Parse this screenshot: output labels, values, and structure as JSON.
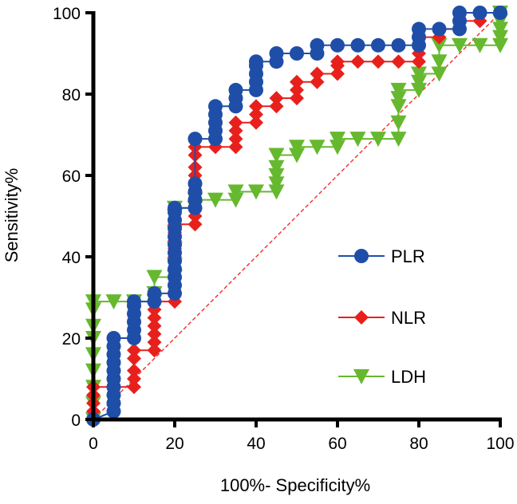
{
  "chart_data": {
    "type": "line",
    "title": "",
    "xlabel": "100%- Specificity%",
    "ylabel": "Sensitivity%",
    "xlim": [
      0,
      100
    ],
    "ylim": [
      0,
      100
    ],
    "xticks": [
      "0",
      "20",
      "40",
      "60",
      "80",
      "100"
    ],
    "yticks": [
      "0",
      "20",
      "40",
      "60",
      "80",
      "100"
    ],
    "x_tick_values": [
      0,
      20,
      40,
      60,
      80,
      100
    ],
    "y_tick_values": [
      0,
      20,
      40,
      60,
      80,
      100
    ],
    "grid": false,
    "legend_position": "right",
    "reference_line": {
      "style": "dashed",
      "color": "#e8322b",
      "from": [
        0,
        0
      ],
      "to": [
        100,
        100
      ]
    },
    "series": [
      {
        "name": "PLR",
        "color": "#1f4ea8",
        "marker": "circle",
        "points": [
          [
            0,
            0
          ],
          [
            5,
            2
          ],
          [
            5,
            4
          ],
          [
            5,
            6
          ],
          [
            5,
            8
          ],
          [
            5,
            10
          ],
          [
            5,
            12
          ],
          [
            5,
            14
          ],
          [
            5,
            16
          ],
          [
            5,
            18
          ],
          [
            5,
            20
          ],
          [
            10,
            20
          ],
          [
            10,
            22
          ],
          [
            10,
            24
          ],
          [
            10,
            26
          ],
          [
            10,
            28
          ],
          [
            10,
            29
          ],
          [
            15,
            29
          ],
          [
            15,
            31
          ],
          [
            20,
            31
          ],
          [
            20,
            33
          ],
          [
            20,
            35
          ],
          [
            20,
            37
          ],
          [
            20,
            39
          ],
          [
            20,
            41
          ],
          [
            20,
            43
          ],
          [
            20,
            45
          ],
          [
            20,
            47
          ],
          [
            20,
            49
          ],
          [
            20,
            51
          ],
          [
            20,
            52
          ],
          [
            25,
            52
          ],
          [
            25,
            54
          ],
          [
            25,
            56
          ],
          [
            25,
            58
          ],
          [
            25,
            69
          ],
          [
            30,
            69
          ],
          [
            30,
            71
          ],
          [
            30,
            73
          ],
          [
            30,
            75
          ],
          [
            30,
            77
          ],
          [
            35,
            77
          ],
          [
            35,
            79
          ],
          [
            35,
            81
          ],
          [
            40,
            81
          ],
          [
            40,
            83
          ],
          [
            40,
            85
          ],
          [
            40,
            87
          ],
          [
            40,
            88
          ],
          [
            45,
            88
          ],
          [
            45,
            90
          ],
          [
            50,
            90
          ],
          [
            55,
            90
          ],
          [
            55,
            92
          ],
          [
            60,
            92
          ],
          [
            65,
            92
          ],
          [
            70,
            92
          ],
          [
            75,
            92
          ],
          [
            80,
            92
          ],
          [
            80,
            94
          ],
          [
            80,
            96
          ],
          [
            85,
            96
          ],
          [
            90,
            96
          ],
          [
            90,
            98
          ],
          [
            90,
            100
          ],
          [
            95,
            100
          ],
          [
            100,
            100
          ]
        ]
      },
      {
        "name": "NLR",
        "color": "#e8201c",
        "marker": "diamond",
        "points": [
          [
            0,
            0
          ],
          [
            0,
            2
          ],
          [
            0,
            4
          ],
          [
            0,
            6
          ],
          [
            0,
            8
          ],
          [
            5,
            8
          ],
          [
            10,
            8
          ],
          [
            10,
            10
          ],
          [
            10,
            12
          ],
          [
            10,
            15
          ],
          [
            10,
            17
          ],
          [
            15,
            17
          ],
          [
            15,
            19
          ],
          [
            15,
            21
          ],
          [
            15,
            23
          ],
          [
            15,
            25
          ],
          [
            15,
            27
          ],
          [
            15,
            29
          ],
          [
            20,
            29
          ],
          [
            20,
            31
          ],
          [
            20,
            33
          ],
          [
            20,
            35
          ],
          [
            20,
            37
          ],
          [
            20,
            40
          ],
          [
            20,
            42
          ],
          [
            20,
            44
          ],
          [
            20,
            46
          ],
          [
            20,
            48
          ],
          [
            25,
            48
          ],
          [
            25,
            50
          ],
          [
            25,
            52
          ],
          [
            25,
            54
          ],
          [
            25,
            56
          ],
          [
            25,
            58
          ],
          [
            25,
            60
          ],
          [
            25,
            62
          ],
          [
            25,
            65
          ],
          [
            25,
            67
          ],
          [
            30,
            67
          ],
          [
            35,
            67
          ],
          [
            35,
            69
          ],
          [
            35,
            71
          ],
          [
            35,
            73
          ],
          [
            40,
            73
          ],
          [
            40,
            75
          ],
          [
            40,
            77
          ],
          [
            45,
            77
          ],
          [
            45,
            79
          ],
          [
            50,
            79
          ],
          [
            50,
            81
          ],
          [
            50,
            83
          ],
          [
            55,
            83
          ],
          [
            55,
            85
          ],
          [
            60,
            85
          ],
          [
            60,
            87
          ],
          [
            60,
            88
          ],
          [
            65,
            88
          ],
          [
            70,
            88
          ],
          [
            75,
            88
          ],
          [
            80,
            88
          ],
          [
            80,
            90
          ],
          [
            80,
            92
          ],
          [
            80,
            94
          ],
          [
            85,
            94
          ],
          [
            85,
            96
          ],
          [
            90,
            96
          ],
          [
            90,
            98
          ],
          [
            95,
            98
          ],
          [
            95,
            100
          ],
          [
            100,
            100
          ]
        ]
      },
      {
        "name": "LDH",
        "color": "#66b82e",
        "marker": "triangle-down",
        "points": [
          [
            0,
            0
          ],
          [
            0,
            4
          ],
          [
            0,
            8
          ],
          [
            0,
            12
          ],
          [
            0,
            16
          ],
          [
            0,
            20
          ],
          [
            0,
            23
          ],
          [
            0,
            27
          ],
          [
            0,
            29
          ],
          [
            5,
            29
          ],
          [
            10,
            29
          ],
          [
            15,
            29
          ],
          [
            15,
            31
          ],
          [
            15,
            35
          ],
          [
            20,
            35
          ],
          [
            20,
            38
          ],
          [
            20,
            42
          ],
          [
            20,
            46
          ],
          [
            20,
            50
          ],
          [
            20,
            52
          ],
          [
            25,
            52
          ],
          [
            25,
            54
          ],
          [
            30,
            54
          ],
          [
            35,
            54
          ],
          [
            35,
            56
          ],
          [
            40,
            56
          ],
          [
            45,
            56
          ],
          [
            45,
            58
          ],
          [
            45,
            60
          ],
          [
            45,
            62
          ],
          [
            45,
            65
          ],
          [
            50,
            65
          ],
          [
            50,
            67
          ],
          [
            55,
            67
          ],
          [
            60,
            67
          ],
          [
            60,
            69
          ],
          [
            65,
            69
          ],
          [
            70,
            69
          ],
          [
            75,
            69
          ],
          [
            75,
            73
          ],
          [
            75,
            77
          ],
          [
            75,
            79
          ],
          [
            75,
            81
          ],
          [
            80,
            81
          ],
          [
            80,
            83
          ],
          [
            80,
            85
          ],
          [
            85,
            85
          ],
          [
            85,
            88
          ],
          [
            85,
            92
          ],
          [
            90,
            92
          ],
          [
            95,
            92
          ],
          [
            100,
            92
          ],
          [
            100,
            94
          ],
          [
            100,
            96
          ],
          [
            100,
            98
          ],
          [
            100,
            100
          ]
        ]
      }
    ]
  }
}
